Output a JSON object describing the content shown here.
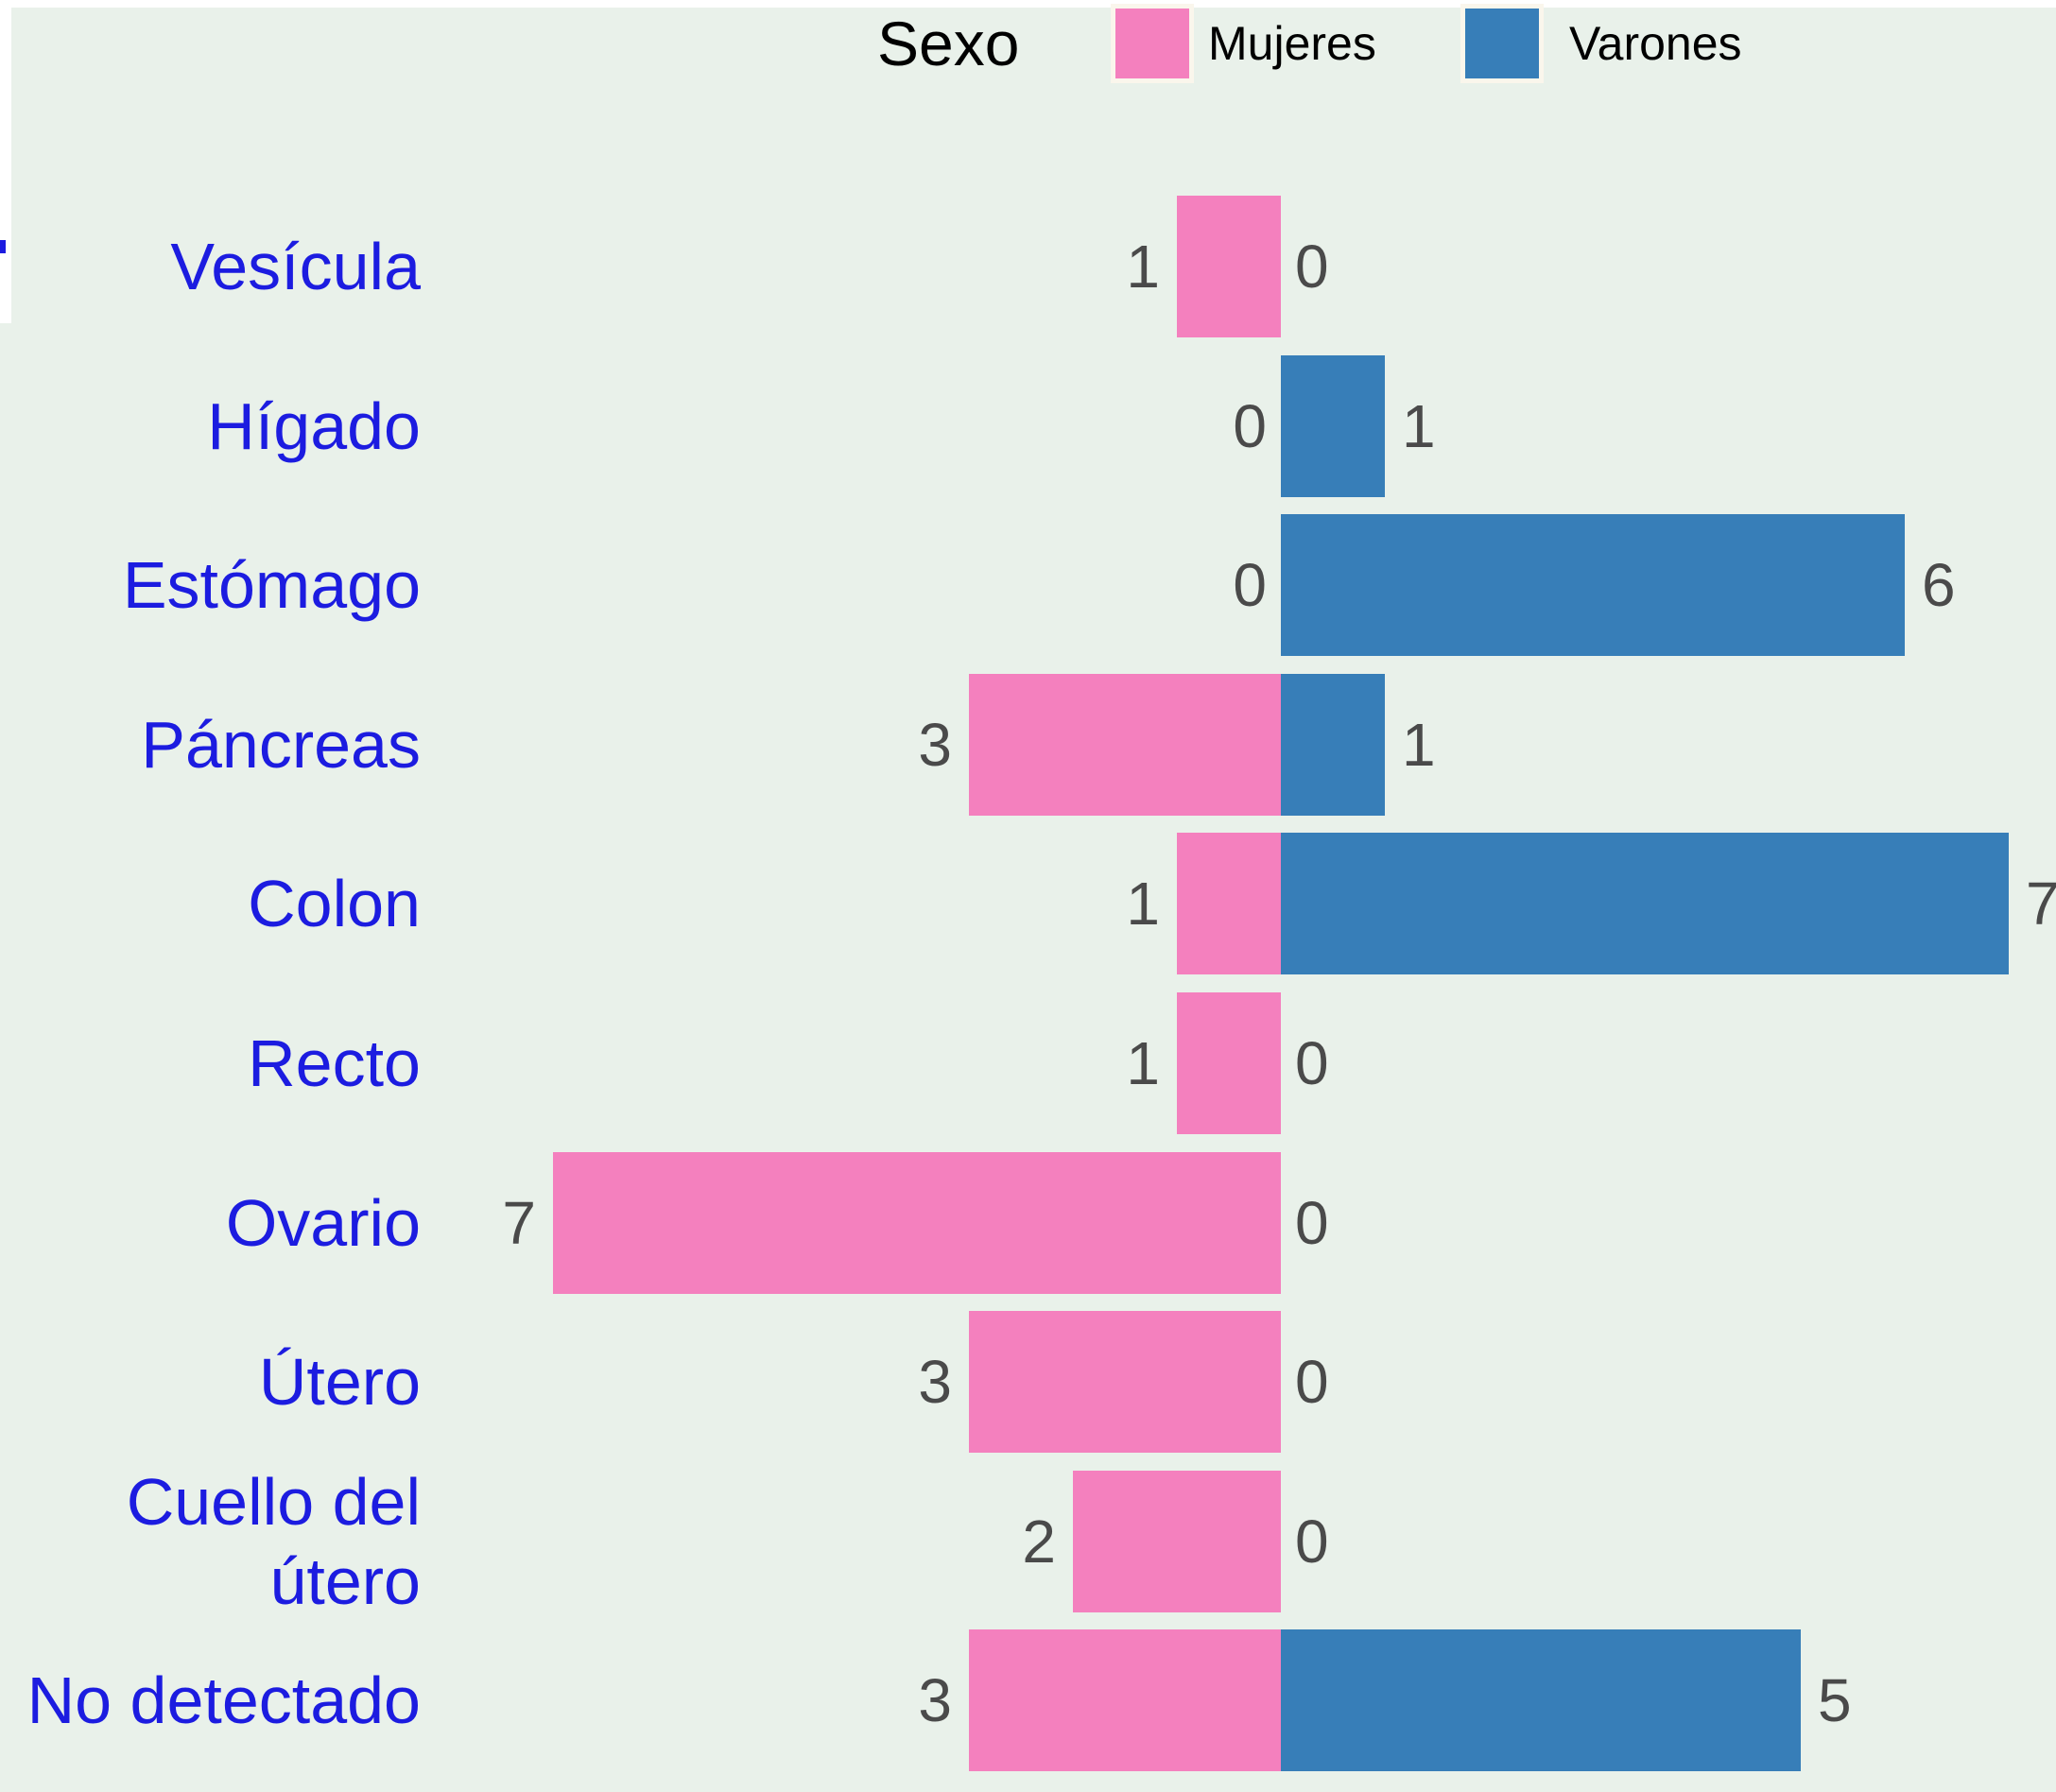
{
  "legend": {
    "title": "Sexo",
    "items": [
      {
        "label": "Mujeres",
        "color": "#F480BE"
      },
      {
        "label": "Varones",
        "color": "#377EB8"
      }
    ]
  },
  "chart_data": {
    "type": "bar",
    "variant": "diverging-horizontal-pyramid",
    "title": "Sexo",
    "categories": [
      "Vesícula",
      "Hígado",
      "Estómago",
      "Páncreas",
      "Colon",
      "Recto",
      "Ovario",
      "Útero",
      "Cuello del útero",
      "No detectado"
    ],
    "series": [
      {
        "name": "Mujeres",
        "side": "left",
        "color": "#F480BE",
        "values": [
          1,
          0,
          0,
          3,
          1,
          1,
          7,
          3,
          2,
          3
        ]
      },
      {
        "name": "Varones",
        "side": "right",
        "color": "#377EB8",
        "values": [
          0,
          1,
          6,
          1,
          7,
          0,
          0,
          0,
          0,
          5
        ]
      }
    ],
    "value_labels": true,
    "axes_hidden": true,
    "xlim": [
      -7,
      7
    ],
    "legend_position": "top",
    "background_color": "#E9F1EA",
    "category_label_color": "#1C1CE0",
    "value_label_color": "#4A4A4A"
  }
}
